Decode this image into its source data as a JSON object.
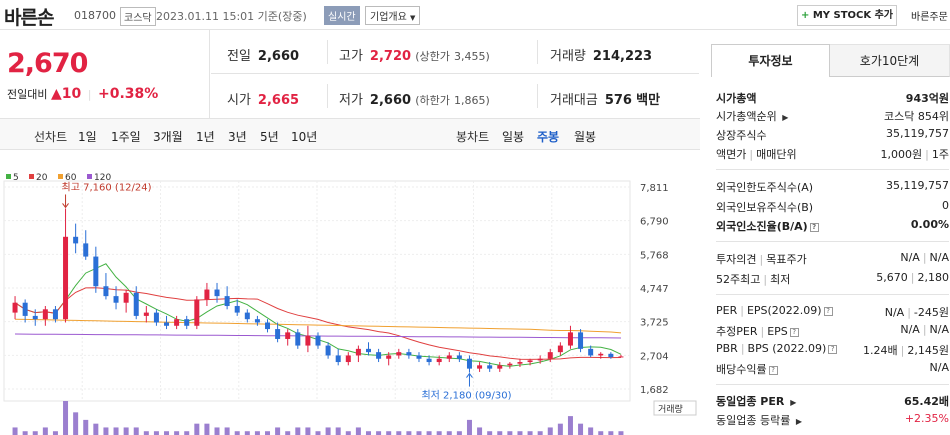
{
  "header": {
    "stock_name": "바른손",
    "stock_code": "018700",
    "market_badge": "코스닥",
    "datetime": "2023.01.11 15:01 기준(장중)",
    "realtime_badge": "실시간",
    "overview_button": "기업개요",
    "mystock_button": "MY STOCK 추가",
    "quick_order": "바른주문"
  },
  "price": {
    "current": "2,670",
    "change_label": "전일대비",
    "change_amount": "10",
    "change_percent": "+0.38%"
  },
  "summary": {
    "prev_close": {
      "label": "전일",
      "value": "2,660"
    },
    "high": {
      "label": "고가",
      "value": "2,720",
      "limit_label": "(상한가",
      "limit_value": "3,455)"
    },
    "volume": {
      "label": "거래량",
      "value": "214,223"
    },
    "open": {
      "label": "시가",
      "value": "2,665"
    },
    "low": {
      "label": "저가",
      "value": "2,660",
      "limit_label": "(하한가",
      "limit_value": "1,865)"
    },
    "amount": {
      "label": "거래대금",
      "value": "576",
      "unit": "백만"
    }
  },
  "toolbar": {
    "line_chart": "선차트",
    "periods": [
      "1일",
      "1주일",
      "3개월",
      "1년",
      "3년",
      "5년",
      "10년"
    ],
    "candle_chart": "봉차트",
    "candle_periods": [
      "일봉",
      "주봉",
      "월봉"
    ],
    "active_candle": "주봉"
  },
  "chart_data": {
    "type": "candlestick",
    "legend": [
      {
        "name": "5",
        "color": "#44b244"
      },
      {
        "name": "20",
        "color": "#e04040"
      },
      {
        "name": "60",
        "color": "#f0a030"
      },
      {
        "name": "120",
        "color": "#9b59d0"
      }
    ],
    "y_ticks": [
      "7,811",
      "6,790",
      "5,768",
      "4,747",
      "3,725",
      "2,704",
      "1,682"
    ],
    "ylim": [
      1682,
      7811
    ],
    "max_annotation": "최고 7,160 (12/24)",
    "min_annotation": "최저 2,180 (09/30)",
    "volume_label": "거래량",
    "candles": [
      [
        4000,
        4500,
        3800,
        4300
      ],
      [
        4300,
        4400,
        3700,
        3900
      ],
      [
        3900,
        4100,
        3600,
        3800
      ],
      [
        3800,
        4200,
        3600,
        4100
      ],
      [
        4100,
        4200,
        3700,
        3800
      ],
      [
        3800,
        7160,
        3700,
        6300
      ],
      [
        6300,
        6700,
        5800,
        6100
      ],
      [
        6100,
        6500,
        5600,
        5700
      ],
      [
        5700,
        6000,
        4600,
        4800
      ],
      [
        4800,
        5200,
        4400,
        4500
      ],
      [
        4500,
        4800,
        4100,
        4300
      ],
      [
        4300,
        4700,
        4000,
        4600
      ],
      [
        4600,
        4800,
        3800,
        3900
      ],
      [
        3900,
        4200,
        3700,
        4000
      ],
      [
        4000,
        4100,
        3600,
        3700
      ],
      [
        3700,
        3900,
        3500,
        3600
      ],
      [
        3600,
        3900,
        3500,
        3800
      ],
      [
        3800,
        3900,
        3500,
        3600
      ],
      [
        3600,
        4500,
        3500,
        4400
      ],
      [
        4400,
        4900,
        4200,
        4700
      ],
      [
        4700,
        4900,
        4300,
        4500
      ],
      [
        4500,
        4800,
        4100,
        4200
      ],
      [
        4200,
        4400,
        3900,
        4000
      ],
      [
        4000,
        4100,
        3700,
        3800
      ],
      [
        3800,
        3900,
        3600,
        3700
      ],
      [
        3700,
        3800,
        3400,
        3500
      ],
      [
        3500,
        3700,
        3100,
        3200
      ],
      [
        3200,
        3500,
        3000,
        3400
      ],
      [
        3400,
        3500,
        2900,
        3000
      ],
      [
        3000,
        3600,
        2800,
        3300
      ],
      [
        3300,
        3400,
        2900,
        3000
      ],
      [
        3000,
        3100,
        2600,
        2700
      ],
      [
        2700,
        2900,
        2400,
        2500
      ],
      [
        2500,
        2800,
        2400,
        2700
      ],
      [
        2700,
        3000,
        2500,
        2900
      ],
      [
        2900,
        3100,
        2700,
        2800
      ],
      [
        2800,
        2900,
        2500,
        2600
      ],
      [
        2600,
        2800,
        2400,
        2700
      ],
      [
        2700,
        2900,
        2600,
        2800
      ],
      [
        2800,
        2900,
        2600,
        2700
      ],
      [
        2700,
        2800,
        2500,
        2600
      ],
      [
        2600,
        2700,
        2400,
        2500
      ],
      [
        2500,
        2700,
        2400,
        2600
      ],
      [
        2600,
        2800,
        2500,
        2700
      ],
      [
        2700,
        2800,
        2500,
        2600
      ],
      [
        2600,
        2700,
        2180,
        2300
      ],
      [
        2300,
        2500,
        2200,
        2400
      ],
      [
        2400,
        2500,
        2200,
        2300
      ],
      [
        2300,
        2500,
        2200,
        2400
      ],
      [
        2400,
        2500,
        2300,
        2450
      ],
      [
        2450,
        2600,
        2350,
        2500
      ],
      [
        2500,
        2600,
        2400,
        2550
      ],
      [
        2550,
        2700,
        2450,
        2600
      ],
      [
        2600,
        2900,
        2500,
        2800
      ],
      [
        2800,
        3100,
        2700,
        3000
      ],
      [
        3000,
        3600,
        2900,
        3400
      ],
      [
        3400,
        3500,
        2800,
        2900
      ],
      [
        2900,
        3000,
        2650,
        2700
      ],
      [
        2700,
        2800,
        2600,
        2750
      ],
      [
        2750,
        2800,
        2600,
        2650
      ],
      [
        2660,
        2720,
        2660,
        2670
      ]
    ],
    "volume": [
      2,
      1,
      1,
      2,
      1,
      9,
      6,
      4,
      3,
      2,
      2,
      2,
      2,
      1,
      1,
      1,
      1,
      1,
      3,
      3,
      2,
      2,
      1,
      1,
      1,
      1,
      2,
      1,
      2,
      2,
      1,
      2,
      2,
      1,
      2,
      1,
      1,
      1,
      1,
      1,
      1,
      1,
      1,
      1,
      1,
      4,
      2,
      1,
      1,
      1,
      1,
      1,
      1,
      2,
      3,
      5,
      3,
      2,
      1,
      1,
      1
    ]
  },
  "right_panel": {
    "tabs": [
      "투자정보",
      "호가10단계"
    ],
    "market_cap": {
      "label": "시가총액",
      "value": "943억원"
    },
    "rows_a": [
      {
        "label": "시가총액순위",
        "value": "코스닥 854위"
      },
      {
        "label": "상장주식수",
        "value": "35,119,757"
      },
      {
        "label": "액면가",
        "label2": "매매단위",
        "value": "1,000원",
        "value2": "1주"
      }
    ],
    "foreign_shares": {
      "label": "외국인한도주식수(A)",
      "value": "35,119,757"
    },
    "foreign_hold": {
      "label": "외국인보유주식수(B)",
      "value": "0"
    },
    "foreign_rate": {
      "label": "외국인소진율(B/A)",
      "value": "0.00%"
    },
    "opinion": {
      "label": "투자의견",
      "label2": "목표주가",
      "value": "N/A",
      "value2": "N/A"
    },
    "week52": {
      "label": "52주최고",
      "label2": "최저",
      "value": "5,670",
      "value2": "2,180"
    },
    "per": {
      "label": "PER",
      "label2": "EPS(2022.09)",
      "value": "N/A",
      "value2": "-245원"
    },
    "est_per": {
      "label": "추정PER",
      "label2": "EPS",
      "value": "N/A",
      "value2": "N/A"
    },
    "pbr": {
      "label": "PBR",
      "label2": "BPS (2022.09)",
      "value": "1.24배",
      "value2": "2,145원"
    },
    "dividend": {
      "label": "배당수익률",
      "value": "N/A"
    },
    "industry_per": {
      "label": "동일업종 PER",
      "value": "65.42배"
    },
    "industry_rate": {
      "label": "동일업종 등락률",
      "value": "+2.35%"
    }
  }
}
